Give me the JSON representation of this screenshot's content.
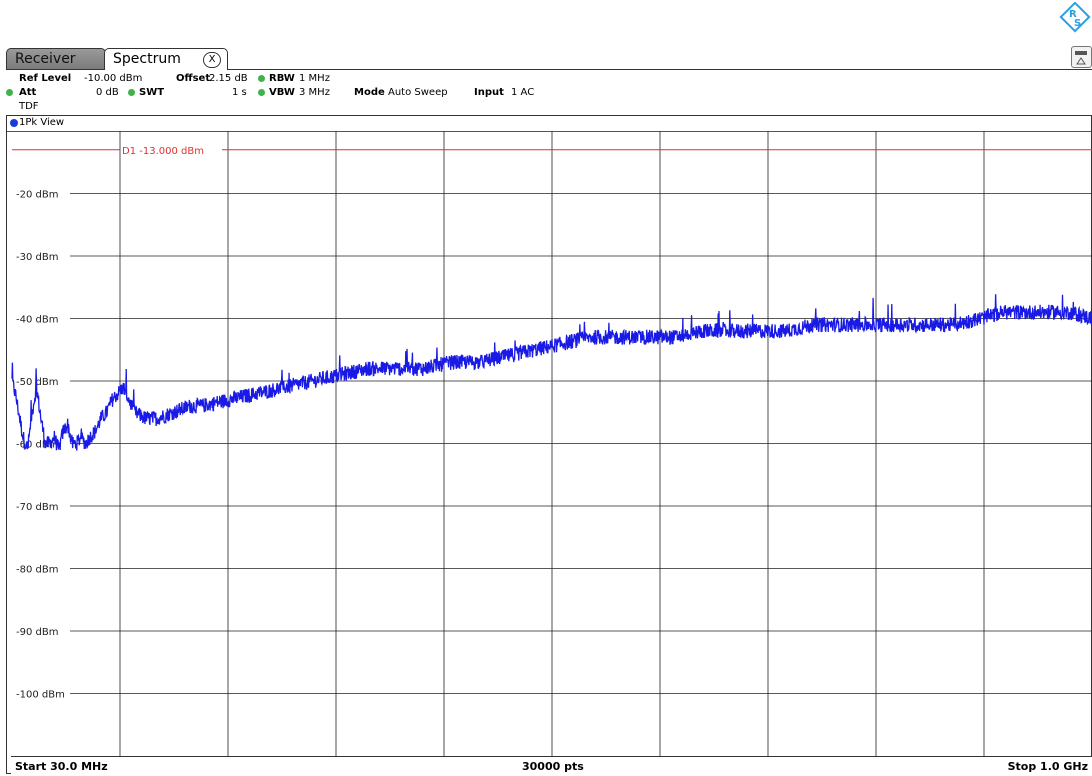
{
  "tabs": [
    {
      "label": "Receiver",
      "active": false
    },
    {
      "label": "Spectrum",
      "active": true,
      "close_icon": "x-circle-icon"
    }
  ],
  "settings": {
    "ref_level_label": "Ref Level",
    "ref_level_value": "-10.00 dBm",
    "offset_label": "Offset",
    "offset_value": "2.15 dB",
    "rbw_label": "RBW",
    "rbw_value": "1 MHz",
    "att_label": "Att",
    "att_value": "0 dB",
    "swt_label": "SWT",
    "swt_value": "1 s",
    "vbw_label": "VBW",
    "vbw_value": "3 MHz",
    "mode_label": "Mode",
    "mode_value": "Auto Sweep",
    "input_label": "Input",
    "input_value": "1 AC",
    "tdf_label": "TDF"
  },
  "view": {
    "label": "1Pk View"
  },
  "footer": {
    "start": "Start 30.0 MHz",
    "points": "30000 pts",
    "stop": "Stop 1.0 GHz"
  },
  "colors": {
    "trace": "#1a1ae6",
    "limit_line": "#e03030",
    "grid": "#222222",
    "led": "#3cb44b",
    "logo": "#2aa0e0"
  },
  "chart_data": {
    "type": "line",
    "x_unit": "MHz",
    "y_unit": "dBm",
    "xlim": [
      30,
      1000
    ],
    "ylim": [
      -110,
      -10
    ],
    "grid": true,
    "y_tick_labels": [
      "-20 dBm",
      "-30 dBm",
      "-40 dBm",
      "-50 dBm",
      "-60 dBm",
      "-70 dBm",
      "-80 dBm",
      "-90 dBm",
      "-100 dBm"
    ],
    "y_tick_values": [
      -20,
      -30,
      -40,
      -50,
      -60,
      -70,
      -80,
      -90,
      -100
    ],
    "x_divisions": 10,
    "limit_line": {
      "label": "D1  -13.000 dBm",
      "value": -13.0
    },
    "series": [
      {
        "x": [
          30,
          33,
          36,
          40,
          44,
          48,
          52,
          56,
          60,
          64,
          68,
          72,
          76,
          80,
          84,
          88,
          92,
          96,
          100,
          105,
          110,
          115,
          120,
          125,
          130,
          135,
          140,
          150,
          160,
          175,
          190,
          200,
          225,
          250,
          275,
          300,
          325,
          350,
          375,
          400,
          425,
          450,
          475,
          500,
          525,
          550,
          575,
          600,
          625,
          650,
          675,
          700,
          725,
          750,
          775,
          800,
          825,
          850,
          875,
          900,
          920,
          940,
          960,
          980,
          1000
        ],
        "y": [
          -50,
          -52,
          -55,
          -59,
          -61,
          -55,
          -51,
          -56,
          -60,
          -60,
          -59,
          -61,
          -58,
          -57,
          -60,
          -60,
          -59,
          -60,
          -59,
          -58,
          -56,
          -55,
          -53,
          -52,
          -51,
          -53,
          -55,
          -56,
          -56,
          -55,
          -54,
          -54,
          -53,
          -52,
          -51,
          -50,
          -49,
          -48,
          -48,
          -48,
          -47,
          -47,
          -46,
          -45,
          -44,
          -43,
          -43,
          -43,
          -43,
          -42,
          -42,
          -42,
          -42,
          -41,
          -41,
          -41,
          -41,
          -41,
          -41,
          -40,
          -39,
          -39,
          -39,
          -39,
          -40
        ]
      }
    ]
  }
}
